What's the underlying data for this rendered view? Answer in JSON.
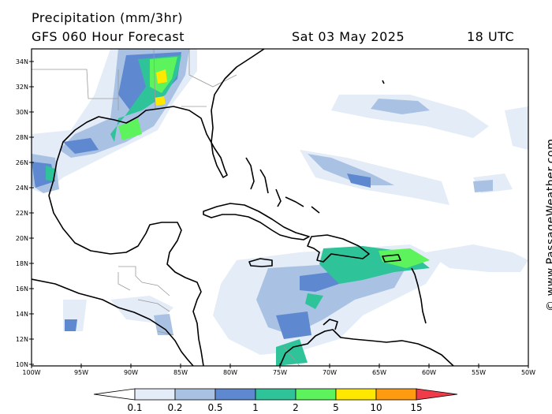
{
  "header": {
    "title": "Precipitation (mm/3hr)",
    "subtitle": "GFS 060 Hour Forecast",
    "date": "Sat 03 May 2025",
    "time": "18 UTC"
  },
  "map": {
    "lat_ticks": [
      "34N",
      "32N",
      "30N",
      "28N",
      "26N",
      "24N",
      "22N",
      "20N",
      "18N",
      "16N",
      "14N",
      "12N",
      "10N"
    ],
    "lon_ticks": [
      "100W",
      "95W",
      "90W",
      "85W",
      "80W",
      "75W",
      "70W",
      "65W",
      "60W",
      "55W",
      "50W"
    ],
    "extent": {
      "lon_min": -100,
      "lon_max": -50,
      "lat_min": 10,
      "lat_max": 35
    }
  },
  "credit": "© www.PassageWeather.com",
  "colorbar": {
    "labels": [
      "0.1",
      "0.2",
      "0.5",
      "1",
      "2",
      "5",
      "10",
      "15"
    ],
    "colors": [
      "#e4ecf7",
      "#a9c2e3",
      "#5e88cf",
      "#2fc39a",
      "#5df35d",
      "#ffe800",
      "#ff9b10",
      "#f03b4a"
    ],
    "low_color": "#ffffff"
  }
}
